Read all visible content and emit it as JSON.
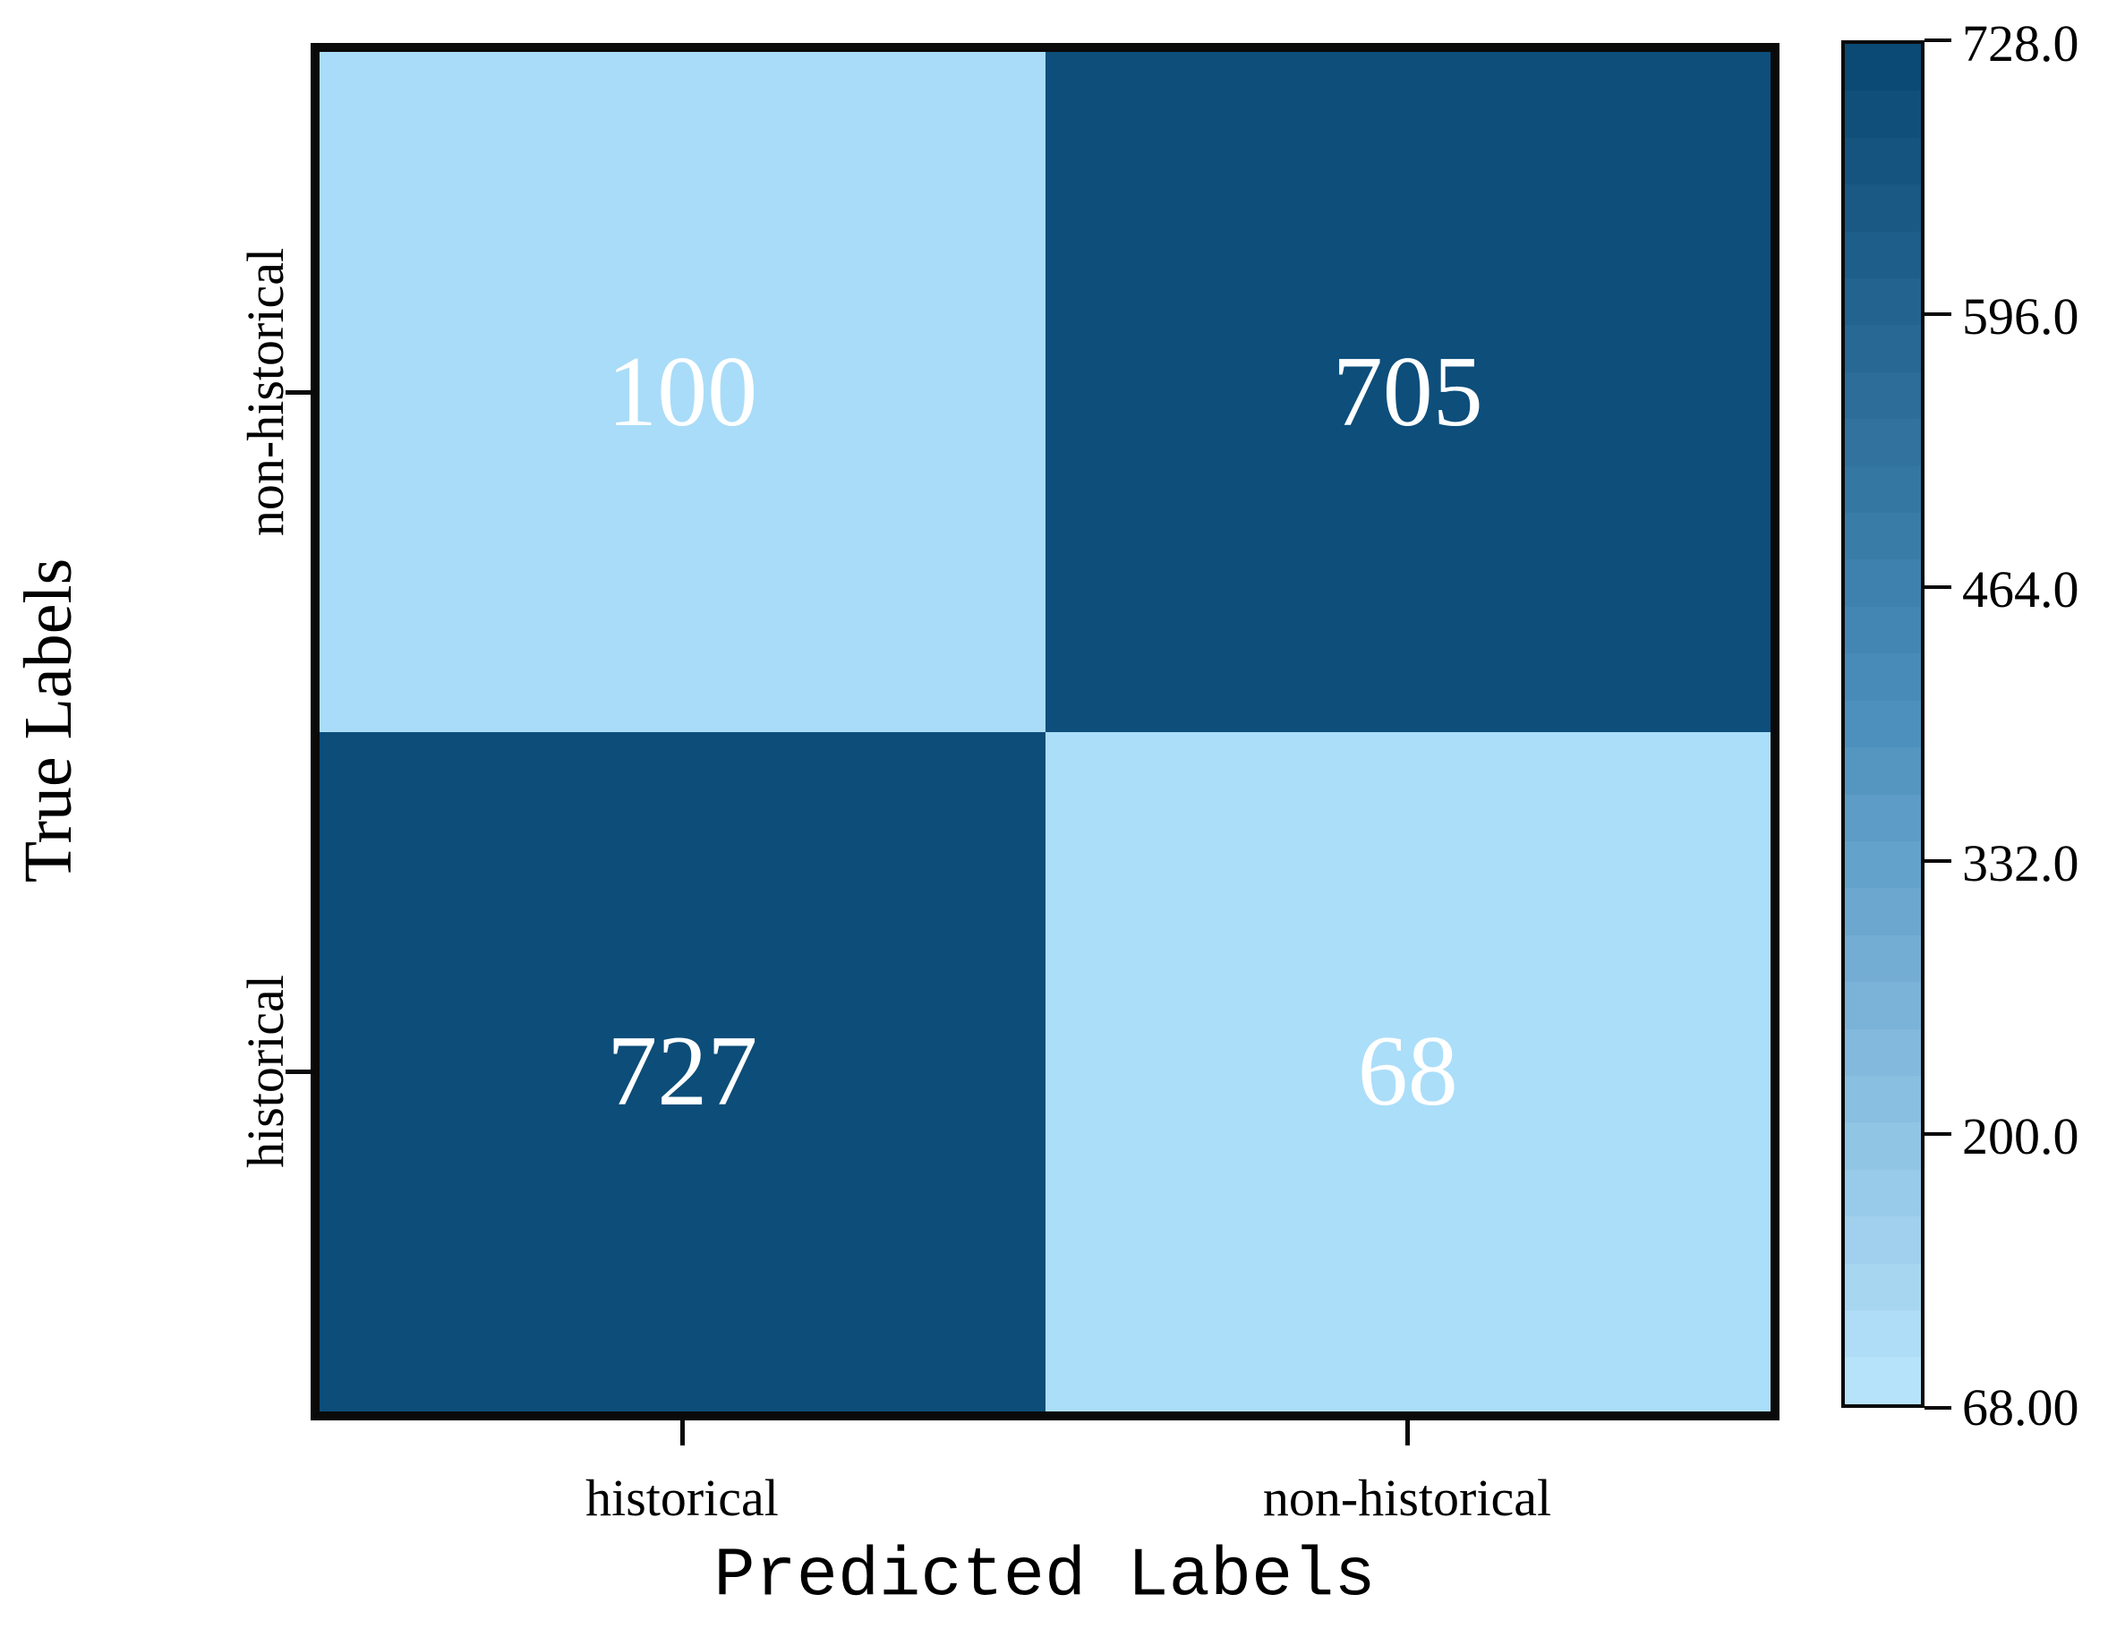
{
  "chart_data": {
    "type": "heatmap",
    "title": "",
    "xlabel": "Predicted Labels",
    "ylabel": "True Labels",
    "x_categories": [
      "historical",
      "non-historical"
    ],
    "y_categories": [
      "non-historical",
      "historical"
    ],
    "matrix": [
      [
        100,
        705
      ],
      [
        727,
        68
      ]
    ],
    "cell_colors": [
      [
        "#a9dcf8",
        "#0d4e7b"
      ],
      [
        "#0c4d79",
        "#abdef9"
      ]
    ],
    "value_text_color": "#ffffff",
    "colorbar": {
      "tick_labels": [
        "728.0",
        "596.0",
        "464.0",
        "332.0",
        "200.0",
        "68.00"
      ],
      "vmin": 68,
      "vmax": 728,
      "bands": 29,
      "color_top": "#0b4a75",
      "color_mid": "#4d90bd",
      "color_bottom": "#b6e2fa"
    },
    "legend_position": "right-colorbar",
    "grid": false
  }
}
